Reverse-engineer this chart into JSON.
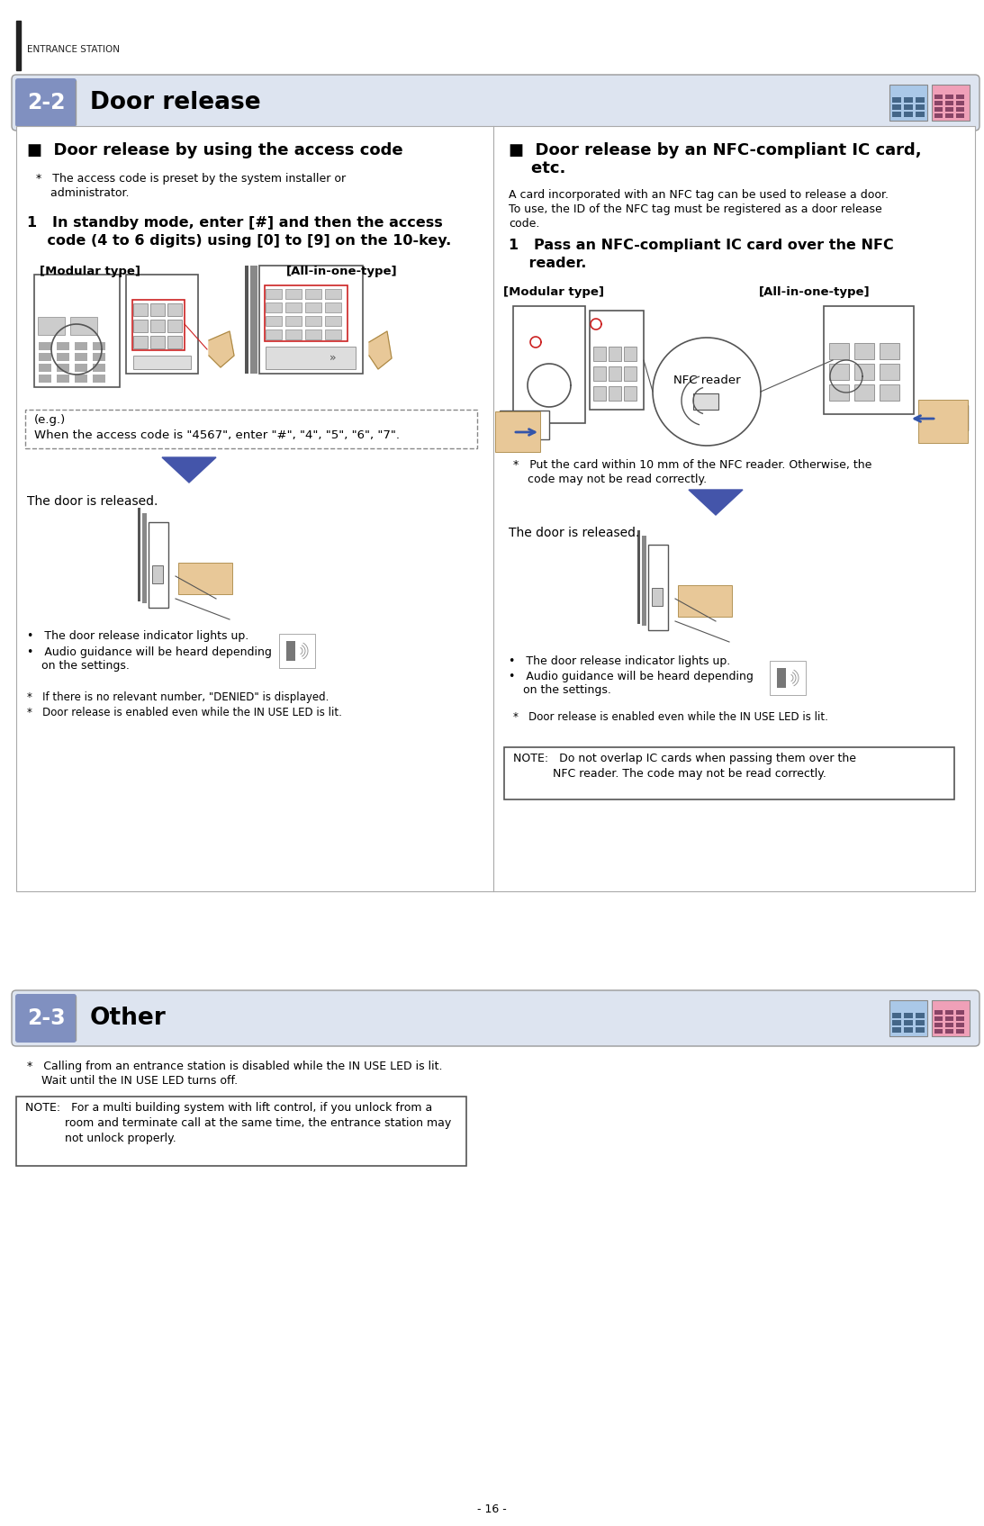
{
  "page_num": "- 16 -",
  "header_label": "ENTRANCE STATION",
  "section_22_label": "2-2",
  "section_22_title": "Door release",
  "section_23_label": "2-3",
  "section_23_title": "Other",
  "bg_color": "#ffffff",
  "section_label_bg": "#8090c0",
  "left_bar_color": "#222222",
  "left_col_heading": "■  Door release by using the access code",
  "right_col_heading1": "■  Door release by an NFC-compliant IC card,",
  "right_col_heading2": "    etc.",
  "left_asterisk1_line1": "*   The access code is preset by the system installer or",
  "left_asterisk1_line2": "    administrator.",
  "left_step1": "1   In standby mode, enter [#] and then the access",
  "left_step1b": "    code (4 to 6 digits) using [0] to [9] on the 10-key.",
  "modular_label": "[Modular type]",
  "allinone_label": "[All-in-one-type]",
  "example_line1": "(e.g.)",
  "example_line2": "When the access code is \"4567\", enter \"#\", \"4\", \"5\", \"6\", \"7\".",
  "door_released_left": "The door is released.",
  "bullet1_left": "•   The door release indicator lights up.",
  "bullet2_left": "•   Audio guidance will be heard depending",
  "bullet2b_left": "    on the settings.",
  "asterisk2_left": "*   If there is no relevant number, \"DENIED\" is displayed.",
  "asterisk3_left": "*   Door release is enabled even while the IN USE LED is lit.",
  "right_nfc_para1": "A card incorporated with an NFC tag can be used to release a door.",
  "right_nfc_para2": "To use, the ID of the NFC tag must be registered as a door release",
  "right_nfc_para3": "code.",
  "right_step1": "1   Pass an NFC-compliant IC card over the NFC",
  "right_step1b": "    reader.",
  "right_asterisk1_line1": "*   Put the card within 10 mm of the NFC reader. Otherwise, the",
  "right_asterisk1_line2": "    code may not be read correctly.",
  "door_released_right": "The door is released.",
  "bullet1_right": "•   The door release indicator lights up.",
  "bullet2_right": "•   Audio guidance will be heard depending",
  "bullet2b_right": "    on the settings.",
  "asterisk_right": "*   Door release is enabled even while the IN USE LED is lit.",
  "note_right_line1": "NOTE:   Do not overlap IC cards when passing them over the",
  "note_right_line2": "           NFC reader. The code may not be read correctly.",
  "note_23_line1": "NOTE:   For a multi building system with lift control, if you unlock from a",
  "note_23_line2": "           room and terminate call at the same time, the entrance station may",
  "note_23_line3": "           not unlock properly.",
  "asterisk_23_line1": "*   Calling from an entrance station is disabled while the IN USE LED is lit.",
  "asterisk_23_line2": "    Wait until the IN USE LED turns off.",
  "nfc_reader_label": "NFC reader",
  "divider_color": "#cccccc",
  "arrow_fill": "#4455aa",
  "icon_blue": "#aac8e8",
  "icon_pink": "#f0a0b8",
  "text_normal": "#000000",
  "text_gray": "#333333",
  "header_bg": "#dde4f0",
  "note_bg": "#ffffff",
  "note_border": "#555555"
}
